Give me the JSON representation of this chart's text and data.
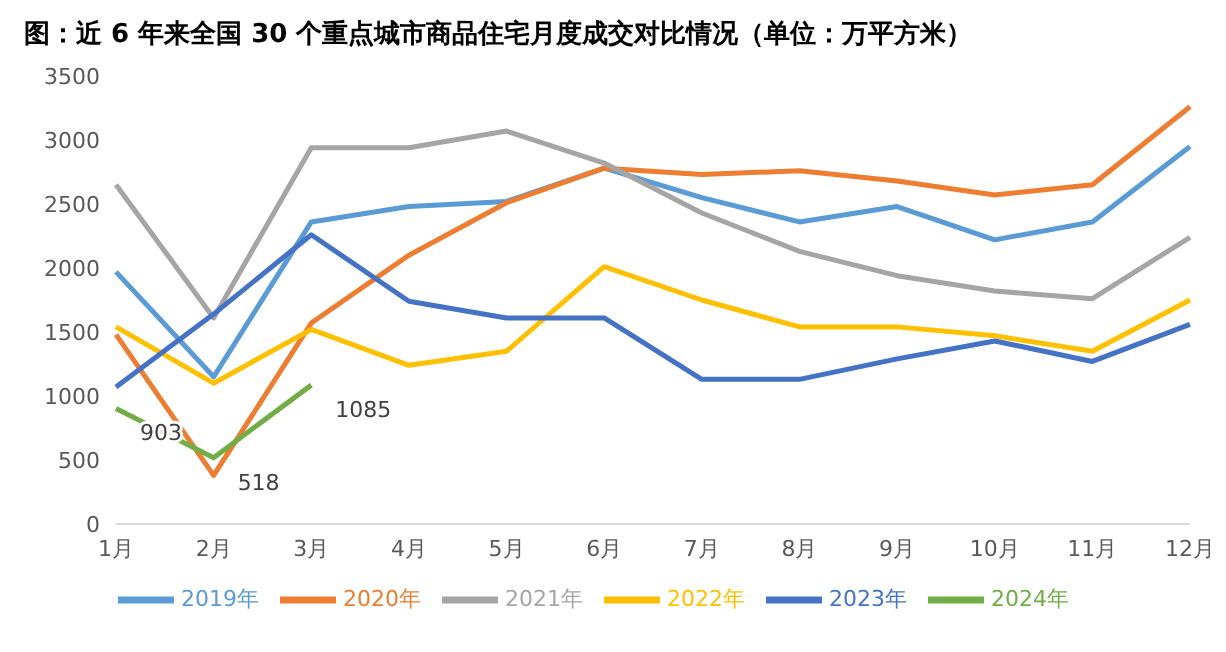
{
  "chart_data": {
    "type": "line",
    "title": "图：近 6 年来全国 30 个重点城市商品住宅月度成交对比情况（单位：万平方米）",
    "categories": [
      "1月",
      "2月",
      "3月",
      "4月",
      "5月",
      "6月",
      "7月",
      "8月",
      "9月",
      "10月",
      "11月",
      "12月"
    ],
    "series": [
      {
        "name": "2019年",
        "color": "#5b9bd5",
        "values": [
          1970,
          1150,
          2360,
          2480,
          2520,
          2780,
          2550,
          2360,
          2480,
          2220,
          2360,
          2950
        ]
      },
      {
        "name": "2020年",
        "color": "#ed7d31",
        "values": [
          1480,
          380,
          1570,
          2100,
          2510,
          2780,
          2730,
          2760,
          2680,
          2570,
          2650,
          3260
        ]
      },
      {
        "name": "2021年",
        "color": "#a5a5a5",
        "values": [
          2650,
          1610,
          2940,
          2940,
          3070,
          2820,
          2430,
          2130,
          1940,
          1820,
          1760,
          2240
        ]
      },
      {
        "name": "2022年",
        "color": "#ffc000",
        "values": [
          1540,
          1100,
          1520,
          1240,
          1350,
          2010,
          1750,
          1540,
          1540,
          1470,
          1350,
          1750
        ]
      },
      {
        "name": "2023年",
        "color": "#4472c4",
        "values": [
          1070,
          1640,
          2260,
          1740,
          1610,
          1610,
          1130,
          1130,
          1290,
          1430,
          1270,
          1560
        ]
      },
      {
        "name": "2024年",
        "color": "#70ad47",
        "values": [
          903,
          518,
          1085,
          null,
          null,
          null,
          null,
          null,
          null,
          null,
          null,
          null
        ],
        "value_labels": [
          "903",
          "518",
          "1085",
          null,
          null,
          null,
          null,
          null,
          null,
          null,
          null,
          null
        ]
      }
    ],
    "ylim": [
      0,
      3500
    ],
    "yticks": [
      0,
      500,
      1000,
      1500,
      2000,
      2500,
      3000,
      3500
    ],
    "grid": false,
    "legend": "bottom",
    "marker": "none",
    "line_style": "solid"
  }
}
